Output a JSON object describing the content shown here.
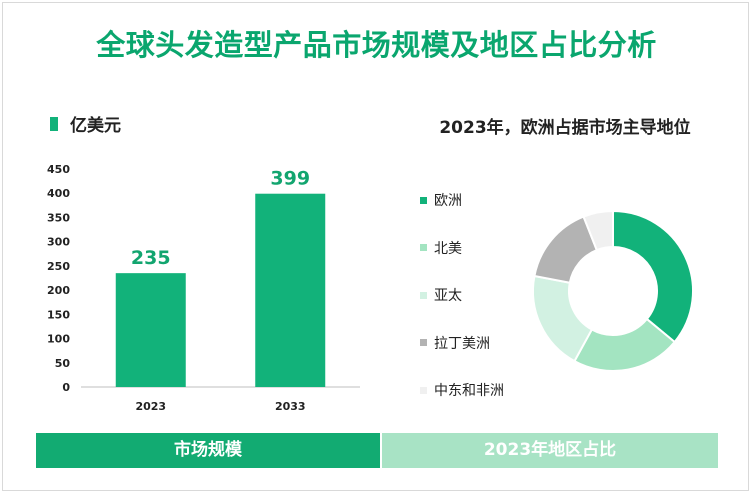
{
  "header": {
    "title": "全球头发造型产品市场规模及地区占比分析"
  },
  "left_panel": {
    "unit_label": "亿美元"
  },
  "right_panel": {
    "title": "2023年，欧洲占据市场主导地位"
  },
  "footer": {
    "left_label": "市场规模",
    "right_label": "2023年地区占比"
  },
  "colors": {
    "bar": "#12b27a",
    "title": "#0aa66e",
    "data_label": "#12a56f"
  },
  "chart_data": [
    {
      "type": "bar",
      "title": "",
      "xlabel": "",
      "ylabel": "亿美元",
      "categories": [
        "2023",
        "2033"
      ],
      "values": [
        235,
        399
      ],
      "ylim": [
        0,
        450
      ],
      "yticks": [
        0,
        50,
        100,
        150,
        200,
        250,
        300,
        350,
        400,
        450
      ],
      "data_labels": [
        "235",
        "399"
      ],
      "grid": false
    },
    {
      "type": "pie",
      "style": "donut",
      "title": "2023年，欧洲占据市场主导地位",
      "labels": [
        "欧洲",
        "北美",
        "亚太",
        "拉丁美洲",
        "中东和非洲"
      ],
      "values": [
        36,
        22,
        20,
        16,
        6
      ],
      "colors": [
        "#12b27a",
        "#a3e4c1",
        "#d2f1e2",
        "#b3b3b3",
        "#f0f0f0"
      ],
      "legend_position": "left"
    }
  ]
}
